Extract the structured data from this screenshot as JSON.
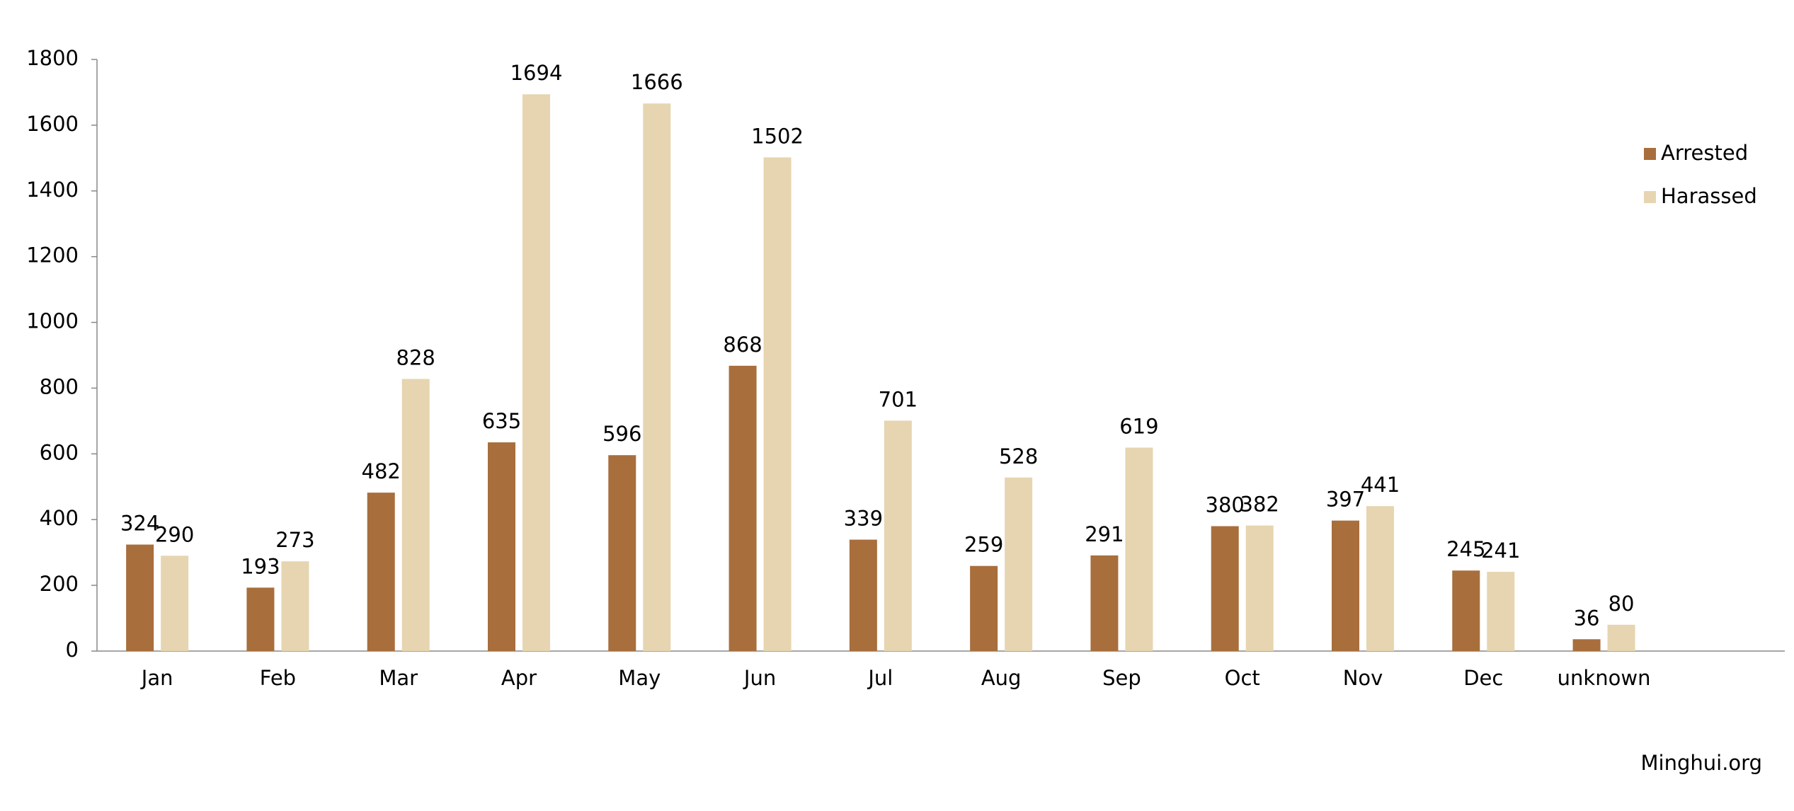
{
  "chart_data": {
    "type": "bar",
    "categories": [
      "Jan",
      "Feb",
      "Mar",
      "Apr",
      "May",
      "Jun",
      "Jul",
      "Aug",
      "Sep",
      "Oct",
      "Nov",
      "Dec",
      "unknown"
    ],
    "series": [
      {
        "name": "Arrested",
        "color": "#a86e3c",
        "values": [
          324,
          193,
          482,
          635,
          596,
          868,
          339,
          259,
          291,
          380,
          397,
          245,
          36
        ]
      },
      {
        "name": "Harassed",
        "color": "#e6d5b0",
        "values": [
          290,
          273,
          828,
          1694,
          1666,
          1502,
          701,
          528,
          619,
          382,
          441,
          241,
          80
        ]
      }
    ],
    "ylim": [
      0,
      1800
    ],
    "yticks": [
      0,
      200,
      400,
      600,
      800,
      1000,
      1200,
      1400,
      1600,
      1800
    ],
    "legend": "right",
    "source": "Minghui.org"
  }
}
